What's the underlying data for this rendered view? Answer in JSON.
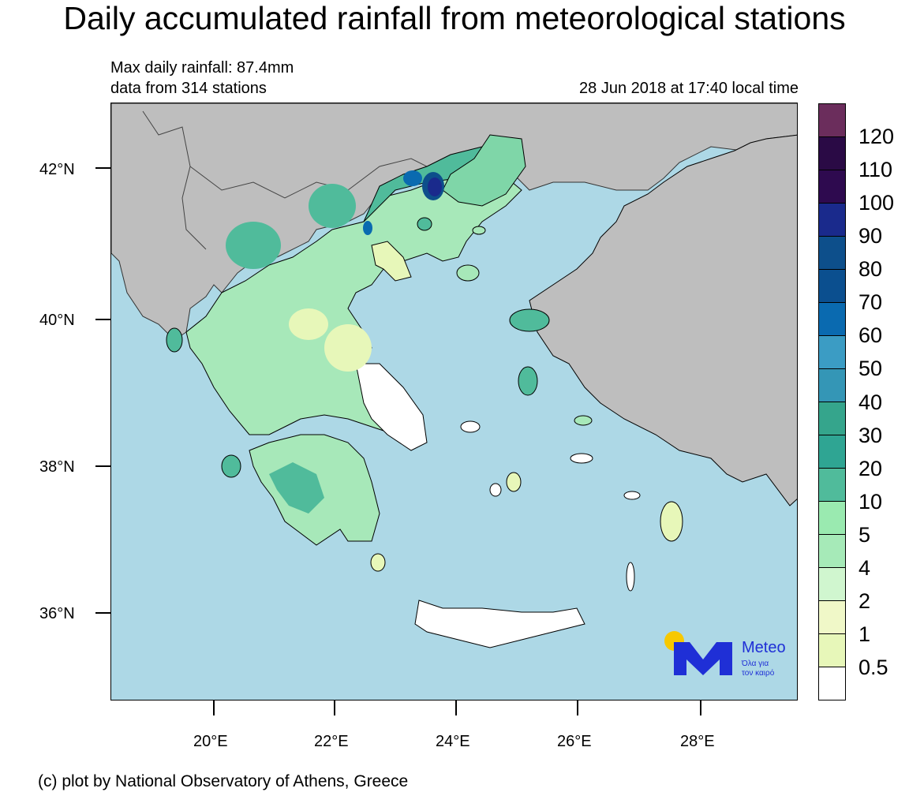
{
  "header": {
    "title": "Daily accumulated rainfall from meteorological stations",
    "max_rainfall": "Max daily rainfall: 87.4mm",
    "stations": "data from 314 stations",
    "timestamp": "28 Jun 2018 at 17:40 local time"
  },
  "map": {
    "region": "Greece",
    "lat_ticks": [
      "42°N",
      "40°N",
      "38°N",
      "36°N"
    ],
    "lon_ticks": [
      "20°E",
      "22°E",
      "24°E",
      "26°E",
      "28°E"
    ],
    "colors": {
      "sea": "#add8e6",
      "land_outside": "#bebebe",
      "borders": "#000000"
    }
  },
  "legend": {
    "labels": [
      "120",
      "110",
      "100",
      "90",
      "80",
      "70",
      "60",
      "50",
      "40",
      "30",
      "20",
      "10",
      "5",
      "4",
      "2",
      "1",
      "0.5"
    ],
    "colors": [
      "#6b2d5c",
      "#2a0a45",
      "#2e0a4f",
      "#1a2a8c",
      "#0d4f8b",
      "#0b4f8f",
      "#0a6ab0",
      "#3b9cc4",
      "#3496b6",
      "#35a58c",
      "#2fa593",
      "#50bb9b",
      "#9aeab0",
      "#a6eab8",
      "#d0f6cf",
      "#f0f8c8",
      "#e7f7b9",
      "#ffffff"
    ]
  },
  "logo": {
    "brand": "Meteo",
    "tagline_1": "Όλα για",
    "tagline_2": "τον καιρό"
  },
  "footer": {
    "credit": "(c) plot by National Observatory of Athens, Greece"
  }
}
